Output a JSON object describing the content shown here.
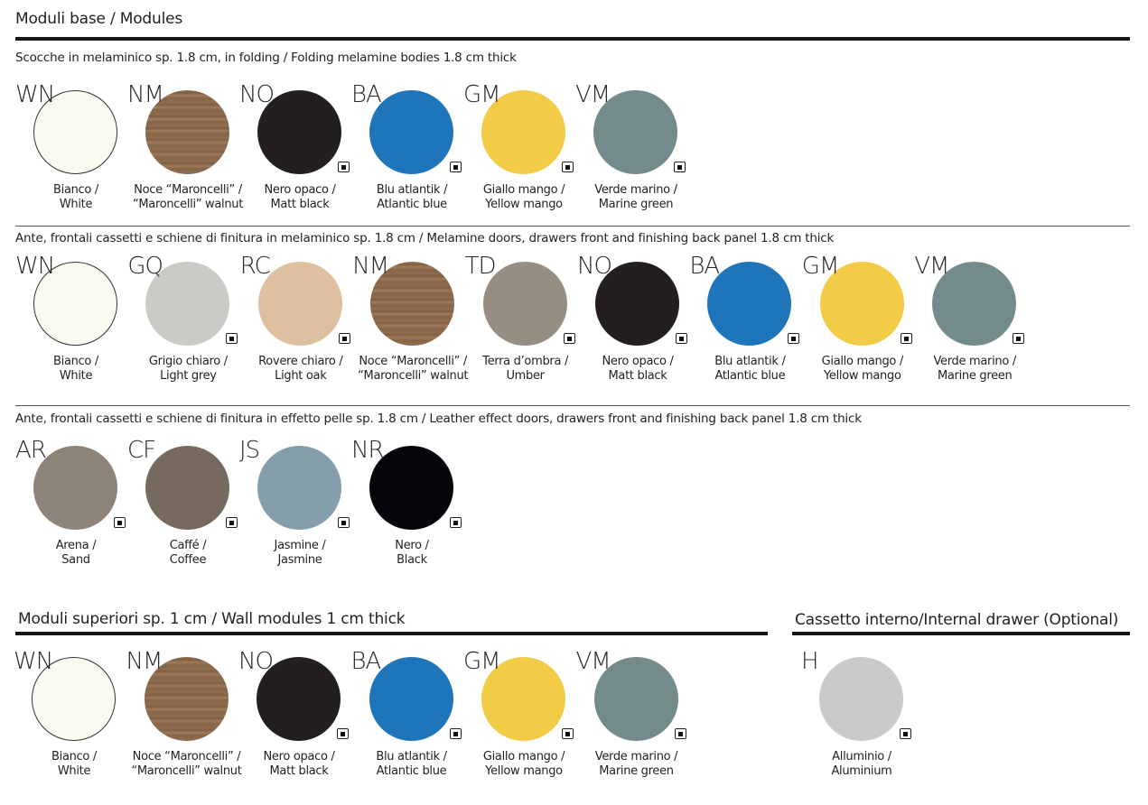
{
  "sections": {
    "base": {
      "title": "Moduli base / Modules"
    },
    "bodies": {
      "subtitle": "Scocche in melaminico sp. 1.8 cm, in folding / Folding melamine bodies 1.8 cm thick",
      "swatches": [
        {
          "code": "WN",
          "it": "Bianco /",
          "en": "White",
          "color": "#fbfaf1",
          "mark": false,
          "border": true
        },
        {
          "code": "NM",
          "it": "Noce “Maroncelli” /",
          "en": "“Maroncelli” walnut",
          "color": "#8c6a4f",
          "mark": false,
          "wood": true
        },
        {
          "code": "NO",
          "it": "Nero opaco /",
          "en": "Matt black",
          "color": "#231f20",
          "mark": true
        },
        {
          "code": "BA",
          "it": "Blu atlantik /",
          "en": "Atlantic blue",
          "color": "#1f75b9",
          "mark": true
        },
        {
          "code": "GM",
          "it": "Giallo mango /",
          "en": "Yellow mango",
          "color": "#f3cc47",
          "mark": true
        },
        {
          "code": "VM",
          "it": "Verde marino /",
          "en": "Marine green",
          "color": "#738c8b",
          "mark": true
        }
      ]
    },
    "melamine_doors": {
      "subtitle": "Ante, frontali cassetti e schiene di finitura in melaminico sp. 1.8 cm / Melamine doors, drawers front and finishing back panel 1.8 cm thick",
      "swatches": [
        {
          "code": "WN",
          "it": "Bianco /",
          "en": "White",
          "color": "#fbfaf1",
          "mark": false,
          "border": true
        },
        {
          "code": "GQ",
          "it": "Grigio chiaro /",
          "en": "Light grey",
          "color": "#c8cbc6",
          "mark": true
        },
        {
          "code": "RC",
          "it": "Rovere chiaro /",
          "en": "Light oak",
          "color": "#dcc0a0",
          "mark": true
        },
        {
          "code": "NM",
          "it": "Noce “Maroncelli” /",
          "en": "“Maroncelli” walnut",
          "color": "#8c6a4f",
          "mark": false,
          "wood": true
        },
        {
          "code": "TD",
          "it": "Terra d’ombra /",
          "en": "Umber",
          "color": "#968d83",
          "mark": true
        },
        {
          "code": "NO",
          "it": "Nero opaco /",
          "en": "Matt black",
          "color": "#231f20",
          "mark": true
        },
        {
          "code": "BA",
          "it": "Blu atlantik /",
          "en": "Atlantic blue",
          "color": "#1f75b9",
          "mark": true
        },
        {
          "code": "GM",
          "it": "Giallo mango /",
          "en": "Yellow mango",
          "color": "#f3cc47",
          "mark": true
        },
        {
          "code": "VM",
          "it": "Verde marino /",
          "en": "Marine green",
          "color": "#738c8b",
          "mark": true
        }
      ]
    },
    "leather_doors": {
      "subtitle": "Ante, frontali cassetti e schiene di finitura in effetto pelle sp. 1.8 cm / Leather effect doors, drawers front and finishing back panel 1.8 cm thick",
      "swatches": [
        {
          "code": "AR",
          "it": "Arena /",
          "en": "Sand",
          "color": "#8d8378",
          "mark": true
        },
        {
          "code": "CF",
          "it": "Caffé /",
          "en": "Coffee",
          "color": "#766a5e",
          "mark": true
        },
        {
          "code": "JS",
          "it": "Jasmine /",
          "en": "Jasmine",
          "color": "#859eac",
          "mark": true
        },
        {
          "code": "NR",
          "it": "Nero /",
          "en": "Black",
          "color": "#05060c",
          "mark": true
        }
      ]
    },
    "wall": {
      "title": "Moduli superiori sp. 1 cm / Wall modules 1 cm thick",
      "swatches": [
        {
          "code": "WN",
          "it": "Bianco /",
          "en": "White",
          "color": "#fbfaf1",
          "mark": false,
          "border": true
        },
        {
          "code": "NM",
          "it": "Noce “Maroncelli” /",
          "en": "“Maroncelli” walnut",
          "color": "#8c6a4f",
          "mark": false,
          "wood": true
        },
        {
          "code": "NO",
          "it": "Nero opaco /",
          "en": "Matt black",
          "color": "#231f20",
          "mark": true
        },
        {
          "code": "BA",
          "it": "Blu atlantik /",
          "en": "Atlantic blue",
          "color": "#1f75b9",
          "mark": true
        },
        {
          "code": "GM",
          "it": "Giallo mango /",
          "en": "Yellow mango",
          "color": "#f3cc47",
          "mark": true
        },
        {
          "code": "VM",
          "it": "Verde marino /",
          "en": "Marine green",
          "color": "#738c8b",
          "mark": true
        }
      ]
    },
    "drawer": {
      "title": "Cassetto interno/Internal drawer (Optional)",
      "swatches": [
        {
          "code": "H",
          "it": "Alluminio /",
          "en": "Aluminium",
          "color": "#c8cacc",
          "mark": true
        }
      ]
    }
  }
}
